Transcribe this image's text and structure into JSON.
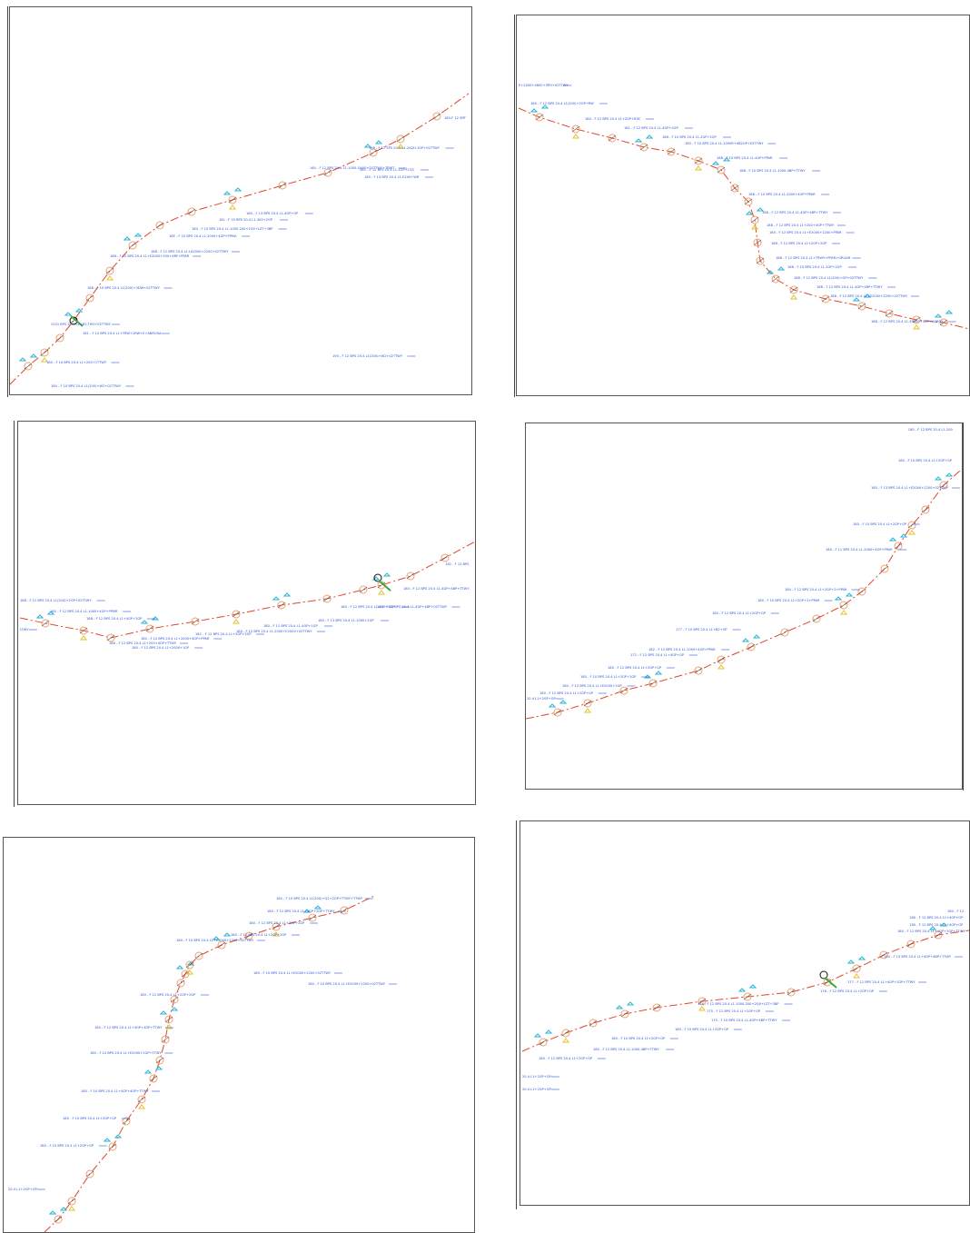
{
  "colors": {
    "route": "#e0452b",
    "node": "#f0a070",
    "label": "#2c55d8",
    "green": "#3fa63f",
    "cyan": "#29b5d5",
    "yellow": "#e6c227"
  },
  "icons": [
    "circle-node-icon",
    "marker-icon",
    "vertex-icon"
  ],
  "panels": [
    {
      "id": "p1",
      "labels": [
        "190 - F 12 BPS 20.4 L1(200)+W2+02TTWY",
        "180-F 12 SRT",
        "188 - F 12 SPS 20.4 L1-2A2H-1GP+02TTWY",
        "160 - F 12 BPS 20.4 L1-1000-Q400+02TTWY+TRWT",
        "18C - F 12 BPS 20.4 L1-1GP+C33",
        "180 - F 13 BPS 20.4 L1-E200+WR",
        "160 - F 13 BPS 20.4 L1-4GP+GP",
        "18L - F 10 BPS 20.4 L1-300+2GP",
        "184 - F 10 BPS 20.4 L1-1000-200+2Q0+LZT+3BP",
        "18E - F 10 BPS 20.4 L1-2000+4GP+PPMA",
        "188 - F 12 BPS 20.4 L1+A2000+2200+02TTWY",
        "188 - F 10 BPS 20.4 L1+E2000+200+ARF+PPAR",
        "188 - F 10 BPS 20.4 L1(200)+3DW+02TTWY",
        "2201 BPS 20.4 L1+B2-THO+02TTWY",
        "181 - F 12 BPS 20.4 L1+TRW+2RW+E+ABROSA",
        "180 - F 10 BPS 20.4 L1+200+1TTWY",
        "180 - F 10 BPS 20.4 L1(200)+W2+02TTWY"
      ]
    },
    {
      "id": "p2",
      "labels": [
        "E+2000+4600+3PH+02TTWY",
        "180 - F 12 BPS 20.4 L1(200)+2GP+RW",
        "180 - F 12 BPS 20.4 L1+2GP+B3C",
        "181 - F 12 BPS 20.4 L1-4GP+2GP",
        "188 - F 10 BPS 20.4 L1-2GP+2GP",
        "180 - F 10 BPS 20.4 L1-1000R+4B2GP+02TTWY",
        "188 - F 10 BPS 20.4 L1-4GP+PPAR",
        "188 - F 10 BPS 20.4 L1-1000-4BP+TTWY",
        "188 - F 10 BPS 20.4 L1-2000+4GP+PPAR",
        "188 - F 12 BPS 20.4 L1-4GP+4BP+TTWY",
        "188 - F 12 BPS 20.4 L1+200+4GP+TTWY",
        "180 - F 12 BPS 20.4 L1+E2000+2200+PPAR",
        "188 - F 12 BPS 20.4 L1+2GP+2GP",
        "188 - F 12 BPS 20.4 L1+TRWY+PPAR+GRGAR",
        "188 - F 10 BPS 20.4 L1-2GP+2GP",
        "188 - F 12 BPS 20.4 L1(200)+GP+02TTWY",
        "188 - F 12 BPS 20.4 L1-4GP+4BP+TTWY",
        "188 - F 12 BPS 20.4 L1+E2000+2200+02TTWY",
        "188 - F 12 BPS 20.4 L1-30000+4GP+AGRGY"
      ]
    },
    {
      "id": "p3",
      "labels": [
        "188 - F 12 BPS 20.4 L1(200)+2GP+02TTWY",
        "180 - F 12 BPS 20.4 L1-1000+4GP+PPMR",
        "LTWY",
        "188 - F 12 BPS 20.4 L1+4GP+2GP",
        "188 - F 12 BPS 20.4 L1+200+4GP+TTWY",
        "180 - F 12 BPS 20.4 L1+2000+1GP",
        "180 - F 12 BPS 20.4 L1+2000+4GP+PPAR",
        "18C - F 12 BPS 20.4 L1+2GP+2GP",
        "180 - F 12 BPS 20.4 L1-2000+E2000+02TTWY",
        "180 - F 11 BPS 20.4 L1-4GP+1GP",
        "180 - F 13 BPS 20.4 L1-1000+2GP",
        "180 - F 12 BPS 20.4 L1-4GP+4GP",
        "180 - F 10 BPS 20.4 L1-4GP+4BP+02TTWY",
        "180 - F 12 BPS 20.4 L1-4GP+4BP+TTWY",
        "182 - F 12 BPS"
      ]
    },
    {
      "id": "p4",
      "labels": [
        "180 - F 12 BPS 20.4 L1-200",
        "180 - F 10 BPS 20.4 L1+2GP+GP",
        "180 - F 13 BPS 20.4 L1+E2000+2200+02TTWY",
        "180 - F 10 BPS 20.4 L1+2GP+GP",
        "180 - F 11 BPS 20.4 L1-2000+4GP+PPAR",
        "180 - F 12 BPS 20.4 L1+2GP+2+PPAR",
        "180 - F 10 BPS 20.4 L1+2GP+2+PPAR",
        "180 - F 12 BPS 20.4 L1+2GP+GP",
        "177 - F 10 BPS 20.4 L1+B2+GP",
        "182 - F 12 BPS 20.4 L1-1000+4GP+PPAR",
        "172 - F 12 BPS 20.4 L1+4GP+GP",
        "180 - F 12 BPS 20.4 L1+2GP+GP",
        "180 - F 10 BPS 20.4 L1+2GP+2GP",
        "180 - F 12 BPS 20.4 L1+E2000+2GP",
        "180 - F 12 BPS 20.4 L1+2GP+GP",
        "20.4 L1+2GP+GP"
      ]
    },
    {
      "id": "p5",
      "labels": [
        "180 - F 10 BPS 20.4 L1(200)+Q2+2GP+TTWY+TTWY",
        "180 - F 12 BPS 20.4 L1+4GP+2GP+TTWY",
        "180 - F 12 BPS 20.4 L1+2GP+2GP",
        "180 - F 12 BPS 20.4 L1+2GP+2GP",
        "180 - F 10 BPS 20.4 L1+E2000+2200+02TTWY",
        "180 - F 10 BPS 20.4 L1+E2000+2200+02TTWY",
        "180 - F 10 BPS 20.4 L1+E2000+2200+02TTWY",
        "180 - F 12 BPS 20.4 L1+2GP+2GP",
        "180 - F 12 BPS 20.4 L1+4GP+4GP+TTWY",
        "180 - F 12 BPS 20.4 L1+E2000+2GP+TTWY",
        "180 - F 10 BPS 20.4 L1+4GP+4GP+TTWY",
        "180 - F 10 BPS 20.4 L1+2GP+GP",
        "180 - F 10 BPS 20.4 L1+2GP+GP",
        "20.4 L1+2GP+GP"
      ]
    },
    {
      "id": "p6",
      "labels": [
        "180 - F 12",
        "180 - F 12 BPS 20.4 L1+4GP+GP",
        "180 - F 12 BPS 20.4 L1+4GP+GP",
        "180 - F 12 BPS 20.4 L1+4GP+2GP+TTWY",
        "180 - F 13 BPS 20.4 L1+4GP+4BP+TTWY",
        "177 - F 12 BPS 20.4 L1+4GP+2GP+TTWY",
        "176 - F 12 BPS 20.4 L1+2GP+GP",
        "176 - F 12 BPS 20.4 L1-1000-200+2Q0+LZT+3BP",
        "175 - F 12 BPS 20.4 L1+2GP+GP",
        "175 - F 10 BPS 20.4 L1-4GP+4BP+TTWY",
        "180 - F 10 BPS 20.4 L1+2GP+GP",
        "180 - F 10 BPS 20.4 L1+2GP+GP",
        "180 - F 12 BPS 20.4 L1-1000-4BP+TTWY",
        "180 - F 12 BPS 20.4 L1+2GP+GP",
        "20.4 L1+2GP+GP",
        "20.4 L1+2GP+GP"
      ]
    }
  ]
}
